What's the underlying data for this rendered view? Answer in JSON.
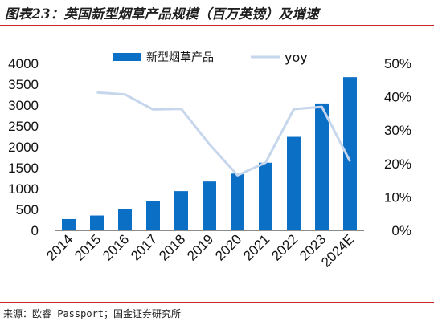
{
  "title": "图表23：英国新型烟草产品规模（百万英镑）及增速",
  "source": "来源：欧睿 Passport；国金证券研究所",
  "colors": {
    "bar": "#0b6fc6",
    "line": "#c6d6ec",
    "rule": "#c9262b"
  },
  "chart_data": {
    "type": "bar",
    "categories": [
      "2014",
      "2015",
      "2016",
      "2017",
      "2018",
      "2019",
      "2020",
      "2021",
      "2022",
      "2023",
      "2024E"
    ],
    "series": [
      {
        "name": "新型烟草产品",
        "type": "bar",
        "axis": "left",
        "values": [
          270,
          355,
          500,
          710,
          940,
          1170,
          1360,
          1620,
          2240,
          3040,
          3670
        ]
      },
      {
        "name": "yoy",
        "type": "line",
        "axis": "right",
        "values": [
          null,
          0.413,
          0.407,
          0.362,
          0.364,
          0.258,
          0.165,
          0.203,
          0.363,
          0.37,
          0.207
        ]
      }
    ],
    "y_left": {
      "lim": [
        0,
        4000
      ],
      "ticks": [
        "0",
        "500",
        "1000",
        "1500",
        "2000",
        "2500",
        "3000",
        "3500",
        "4000"
      ]
    },
    "y_right": {
      "lim": [
        0,
        0.5
      ],
      "ticks": [
        "0%",
        "10%",
        "20%",
        "30%",
        "40%",
        "50%"
      ]
    },
    "legend": {
      "position": "top-center"
    },
    "grid": false
  }
}
